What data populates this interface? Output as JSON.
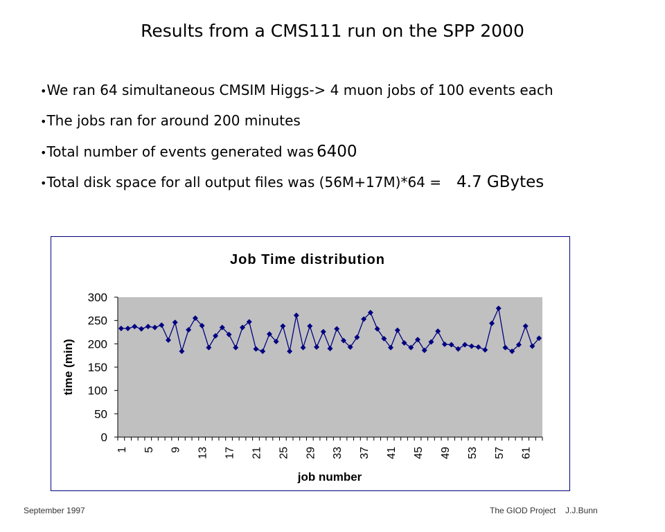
{
  "header": {
    "title": "Results from a CMS111 run on the SPP 2000"
  },
  "bullets": [
    {
      "text": "We ran 64 simultaneous CMSIM Higgs-> 4 muon jobs of 100 events each"
    },
    {
      "text": "The jobs ran for around 200 minutes"
    },
    {
      "text": "Total number of events generated was",
      "emphasis": "6400"
    },
    {
      "text": "Total disk space for all output files was (56M+17M)*64 =",
      "emphasis": "4.7 GBytes"
    }
  ],
  "chart_data": {
    "type": "line",
    "title": "Job Time distribution",
    "x_label": "job number",
    "y_label": "time (min)",
    "categories": [
      1,
      null,
      null,
      null,
      5,
      null,
      null,
      null,
      9,
      null,
      null,
      null,
      13,
      null,
      null,
      null,
      17,
      null,
      null,
      null,
      21,
      null,
      null,
      null,
      25,
      null,
      null,
      null,
      29,
      null,
      null,
      null,
      33,
      null,
      null,
      null,
      37,
      null,
      null,
      null,
      41,
      null,
      null,
      null,
      45,
      null,
      null,
      null,
      49,
      null,
      null,
      null,
      53,
      null,
      null,
      null,
      57,
      null,
      null,
      null,
      61,
      null,
      null
    ],
    "series": [
      {
        "name": "time",
        "color": "#000080",
        "values": [
          233,
          233,
          237,
          232,
          237,
          235,
          240,
          208,
          246,
          184,
          230,
          255,
          239,
          192,
          217,
          235,
          220,
          192,
          235,
          247,
          189,
          184,
          221,
          205,
          238,
          184,
          261,
          192,
          238,
          193,
          226,
          190,
          232,
          207,
          193,
          214,
          253,
          267,
          232,
          211,
          192,
          229,
          202,
          192,
          209,
          186,
          204,
          227,
          199,
          198,
          189,
          198,
          195,
          193,
          187,
          244,
          276,
          192,
          184,
          198,
          238,
          195,
          212
        ]
      }
    ],
    "ylim": [
      0,
      300
    ],
    "yticks": [
      0,
      50,
      100,
      150,
      200,
      250,
      300
    ],
    "plot_background": "#c0c0c0"
  },
  "footer": {
    "left": "September 1997",
    "right": "The GIOD Project",
    "author": "J.J.Bunn"
  }
}
